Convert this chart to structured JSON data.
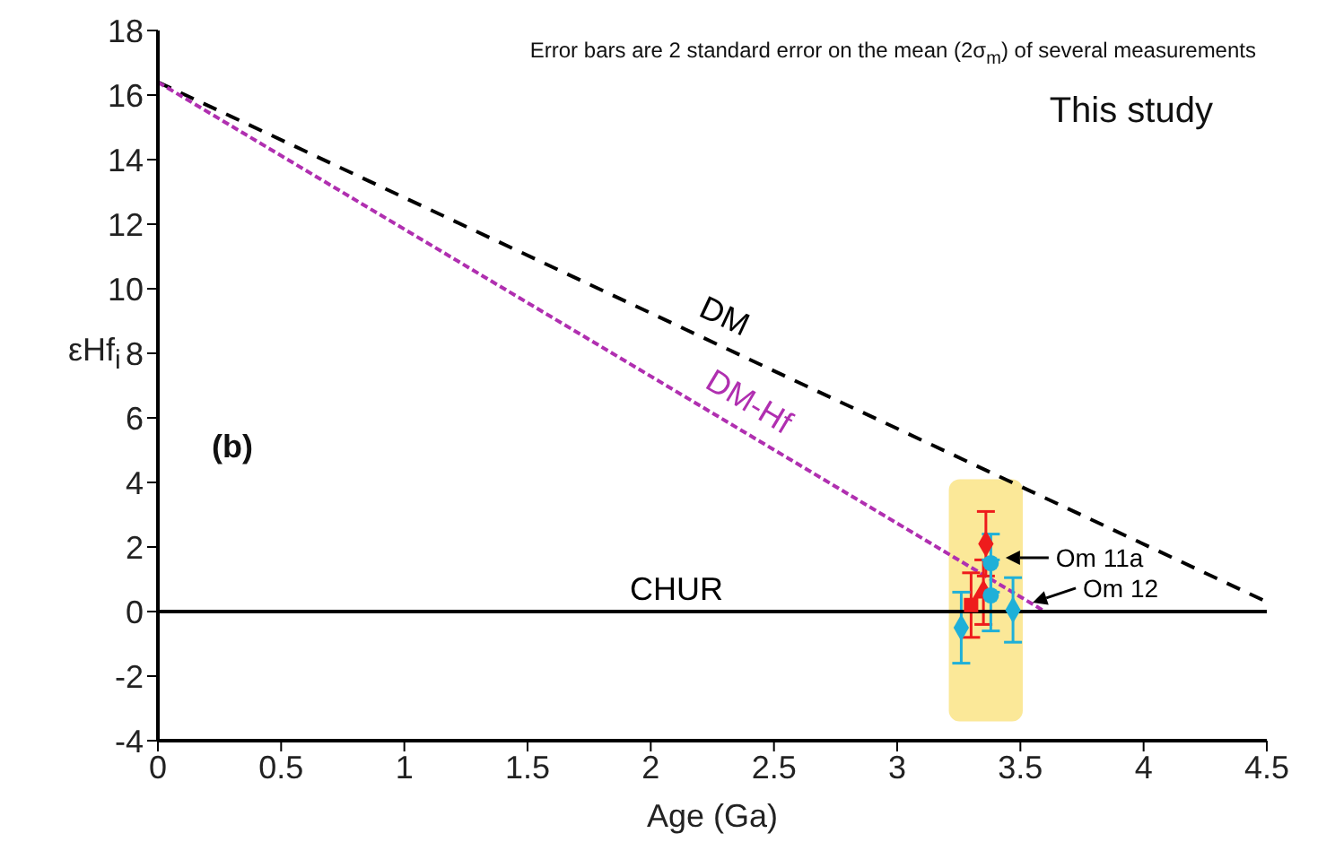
{
  "chart_data": {
    "type": "scatter",
    "xlabel": "Age (Ga)",
    "ylabel": "εHf$_{i}$",
    "xlim": [
      0,
      4.5
    ],
    "xticks": [
      0,
      0.5,
      1,
      1.5,
      2,
      2.5,
      3,
      3.5,
      4,
      4.5
    ],
    "ylim": [
      -4,
      18
    ],
    "yticks": [
      -4,
      -2,
      0,
      2,
      4,
      6,
      8,
      10,
      12,
      14,
      16,
      18
    ],
    "grid": false,
    "legend": false,
    "series": [
      {
        "type": "bar",
        "color": "#fbe898",
        "x": [
          3.36
        ],
        "base": [
          -3.4
        ],
        "values": [
          7.5
        ]
      },
      {
        "type": "line",
        "name": "DM",
        "color": "#000000",
        "line_style": "dashed",
        "x": [
          0,
          4.5
        ],
        "values": [
          16.4,
          0.3
        ]
      },
      {
        "type": "line",
        "name": "DM-Hf",
        "color": "#b02fb0",
        "line_style": "dotted",
        "x": [
          0,
          3.6
        ],
        "values": [
          16.4,
          0
        ]
      },
      {
        "marker": "square",
        "color": "#ee1c1c",
        "x": [
          3.3
        ],
        "values": [
          0.2
        ],
        "errors": [
          1.0
        ]
      },
      {
        "marker": "triangle",
        "color": "#ee1c1c",
        "x": [
          3.35
        ],
        "values": [
          0.6
        ],
        "errors": [
          1.0
        ]
      },
      {
        "marker": "diamond",
        "color": "#ee1c1c",
        "x": [
          3.36
        ],
        "values": [
          2.1
        ],
        "errors": [
          1.0
        ]
      },
      {
        "marker": "circle",
        "color": "#1fb0d8",
        "x": [
          3.38,
          3.38
        ],
        "values": [
          1.5,
          0.5
        ],
        "errors": [
          0.9,
          1.1
        ]
      },
      {
        "marker": "diamond",
        "color": "#1fb0d8",
        "x": [
          3.26,
          3.47
        ],
        "values": [
          -0.5,
          0.05
        ],
        "errors": [
          1.1,
          1.0
        ]
      }
    ],
    "ref_lines": [
      {
        "axis": "y",
        "value": 0,
        "label": "CHUR",
        "color": "#000000"
      }
    ],
    "annotations": [
      {
        "text": "Om 11a",
        "x": 3.44,
        "y": 1.67
      },
      {
        "text": "Om 12",
        "x": 3.55,
        "y": 0.28
      },
      "Error bars are 2 standard error on the mean (2σ$_{m}$) of several measurements",
      "This study",
      "(b)"
    ]
  }
}
